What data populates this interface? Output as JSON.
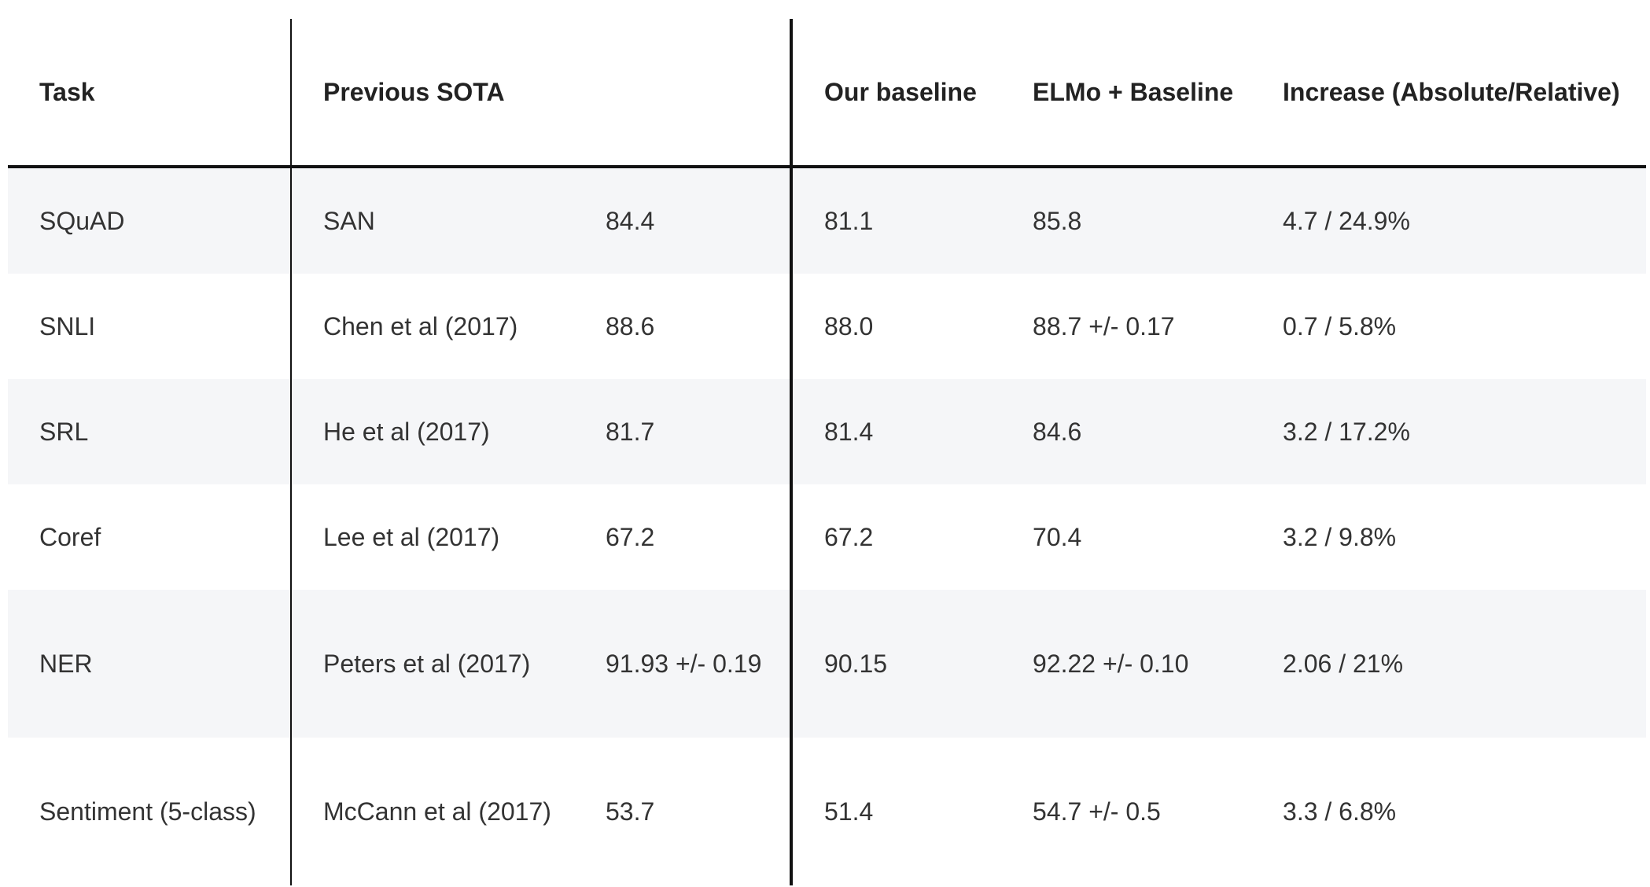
{
  "table": {
    "headers": {
      "task": "Task",
      "previous_sota": "Previous SOTA",
      "our_baseline": "Our baseline",
      "elmo_baseline": "ELMo + Baseline",
      "increase": "Increase (Absolute/Relative)"
    },
    "rows": [
      {
        "task": "SQuAD",
        "sota_model": "SAN",
        "sota_score": "84.4",
        "our_baseline": "81.1",
        "elmo_baseline": "85.8",
        "increase": "4.7 / 24.9%"
      },
      {
        "task": "SNLI",
        "sota_model": "Chen et al (2017)",
        "sota_score": "88.6",
        "our_baseline": "88.0",
        "elmo_baseline": "88.7 +/- 0.17",
        "increase": "0.7 / 5.8%"
      },
      {
        "task": "SRL",
        "sota_model": "He et al (2017)",
        "sota_score": "81.7",
        "our_baseline": "81.4",
        "elmo_baseline": "84.6",
        "increase": "3.2 / 17.2%"
      },
      {
        "task": "Coref",
        "sota_model": "Lee et al (2017)",
        "sota_score": "67.2",
        "our_baseline": "67.2",
        "elmo_baseline": "70.4",
        "increase": "3.2 / 9.8%"
      },
      {
        "task": "NER",
        "sota_model": "Peters et al (2017)",
        "sota_score": "91.93 +/- 0.19",
        "our_baseline": "90.15",
        "elmo_baseline": "92.22 +/- 0.10",
        "increase": "2.06 / 21%"
      },
      {
        "task": "Sentiment (5-class)",
        "sota_model": "McCann et al (2017)",
        "sota_score": "53.7",
        "our_baseline": "51.4",
        "elmo_baseline": "54.7 +/- 0.5",
        "increase": "3.3 / 6.8%"
      }
    ]
  },
  "colors": {
    "row_shade": "#f5f6f8",
    "rule": "#111111",
    "text": "#222222"
  }
}
